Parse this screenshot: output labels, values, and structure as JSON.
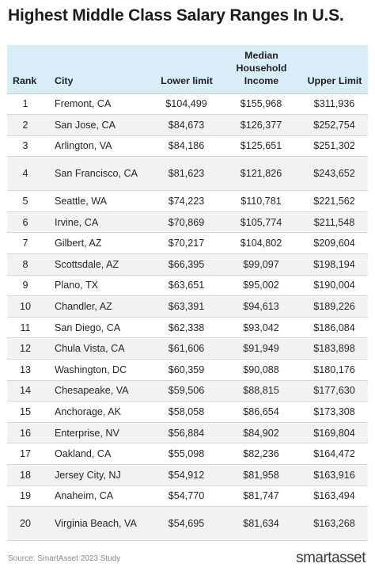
{
  "title": "Highest Middle Class Salary Ranges In U.S.",
  "table": {
    "headers": {
      "rank": "Rank",
      "city": "City",
      "lower": "Lower limit",
      "median": "Median Household Income",
      "upper": "Upper Limit"
    },
    "rows": [
      {
        "rank": "1",
        "city": "Fremont, CA",
        "lower": "$104,499",
        "median": "$155,968",
        "upper": "$311,936"
      },
      {
        "rank": "2",
        "city": "San Jose, CA",
        "lower": "$84,673",
        "median": "$126,377",
        "upper": "$252,754"
      },
      {
        "rank": "3",
        "city": "Arlington, VA",
        "lower": "$84,186",
        "median": "$125,651",
        "upper": "$251,302"
      },
      {
        "rank": "4",
        "city": "San Francisco, CA",
        "lower": "$81,623",
        "median": "$121,826",
        "upper": "$243,652"
      },
      {
        "rank": "5",
        "city": "Seattle, WA",
        "lower": "$74,223",
        "median": "$110,781",
        "upper": "$221,562"
      },
      {
        "rank": "6",
        "city": "Irvine, CA",
        "lower": "$70,869",
        "median": "$105,774",
        "upper": "$211,548"
      },
      {
        "rank": "7",
        "city": "Gilbert, AZ",
        "lower": "$70,217",
        "median": "$104,802",
        "upper": "$209,604"
      },
      {
        "rank": "8",
        "city": "Scottsdale, AZ",
        "lower": "$66,395",
        "median": "$99,097",
        "upper": "$198,194"
      },
      {
        "rank": "9",
        "city": "Plano, TX",
        "lower": "$63,651",
        "median": "$95,002",
        "upper": "$190,004"
      },
      {
        "rank": "10",
        "city": "Chandler, AZ",
        "lower": "$63,391",
        "median": "$94,613",
        "upper": "$189,226"
      },
      {
        "rank": "11",
        "city": "San Diego, CA",
        "lower": "$62,338",
        "median": "$93,042",
        "upper": "$186,084"
      },
      {
        "rank": "12",
        "city": "Chula Vista, CA",
        "lower": "$61,606",
        "median": "$91,949",
        "upper": "$183,898"
      },
      {
        "rank": "13",
        "city": "Washington, DC",
        "lower": "$60,359",
        "median": "$90,088",
        "upper": "$180,176"
      },
      {
        "rank": "14",
        "city": "Chesapeake, VA",
        "lower": "$59,506",
        "median": "$88,815",
        "upper": "$177,630"
      },
      {
        "rank": "15",
        "city": "Anchorage, AK",
        "lower": "$58,058",
        "median": "$86,654",
        "upper": "$173,308"
      },
      {
        "rank": "16",
        "city": "Enterprise, NV",
        "lower": "$56,884",
        "median": "$84,902",
        "upper": "$169,804"
      },
      {
        "rank": "17",
        "city": "Oakland, CA",
        "lower": "$55,098",
        "median": "$82,236",
        "upper": "$164,472"
      },
      {
        "rank": "18",
        "city": "Jersey City, NJ",
        "lower": "$54,912",
        "median": "$81,958",
        "upper": "$163,916"
      },
      {
        "rank": "19",
        "city": "Anaheim, CA",
        "lower": "$54,770",
        "median": "$81,747",
        "upper": "$163,494"
      },
      {
        "rank": "20",
        "city": "Virginia Beach, VA",
        "lower": "$54,695",
        "median": "$81,634",
        "upper": "$163,268"
      }
    ]
  },
  "source": "Source: SmartAsset 2023 Study",
  "logo": "smartasset",
  "colors": {
    "header_background": "#d8edf7",
    "stripe_background": "#f2f2f2"
  }
}
